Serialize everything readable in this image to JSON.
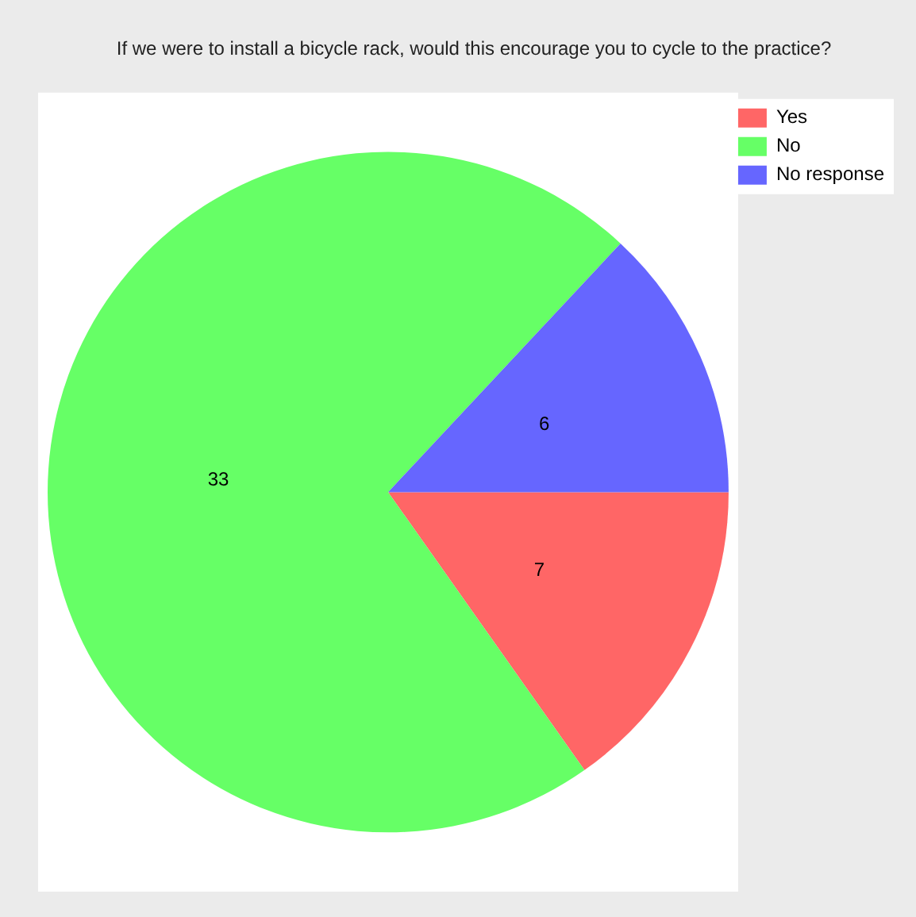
{
  "chart_data": {
    "type": "pie",
    "title": "If we were to install a bicycle rack, would this encourage you to cycle to the practice?",
    "categories": [
      "Yes",
      "No",
      "No response"
    ],
    "values": [
      7,
      33,
      6
    ],
    "colors": [
      "#ff6666",
      "#66ff66",
      "#6666ff"
    ],
    "data_labels": true,
    "legend": "top right"
  }
}
